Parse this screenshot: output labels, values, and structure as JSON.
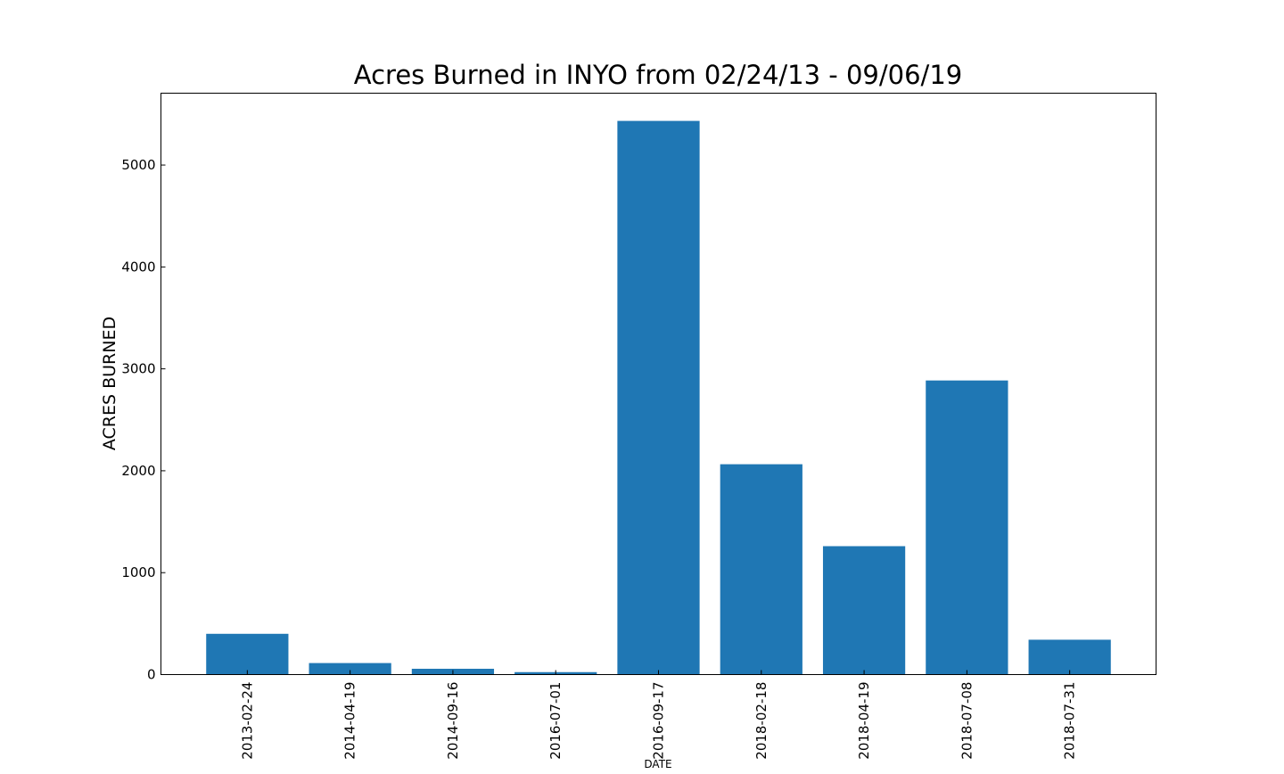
{
  "chart_data": {
    "type": "bar",
    "title": "Acres Burned in INYO from 02/24/13 - 09/06/19",
    "xlabel": "DATE",
    "ylabel": "ACRES BURNED",
    "categories": [
      "2013-02-24",
      "2014-04-19",
      "2014-09-16",
      "2016-07-01",
      "2016-09-17",
      "2018-02-18",
      "2018-04-19",
      "2018-07-08",
      "2018-07-31"
    ],
    "values": [
      400,
      113,
      57,
      24,
      5433,
      2064,
      1260,
      2886,
      342
    ],
    "ylim": [
      0,
      5705
    ],
    "yticks": [
      0,
      1000,
      2000,
      3000,
      4000,
      5000
    ],
    "grid": false,
    "legend": "none",
    "bar_color": "#1f77b4",
    "axis_color": "#000000"
  }
}
